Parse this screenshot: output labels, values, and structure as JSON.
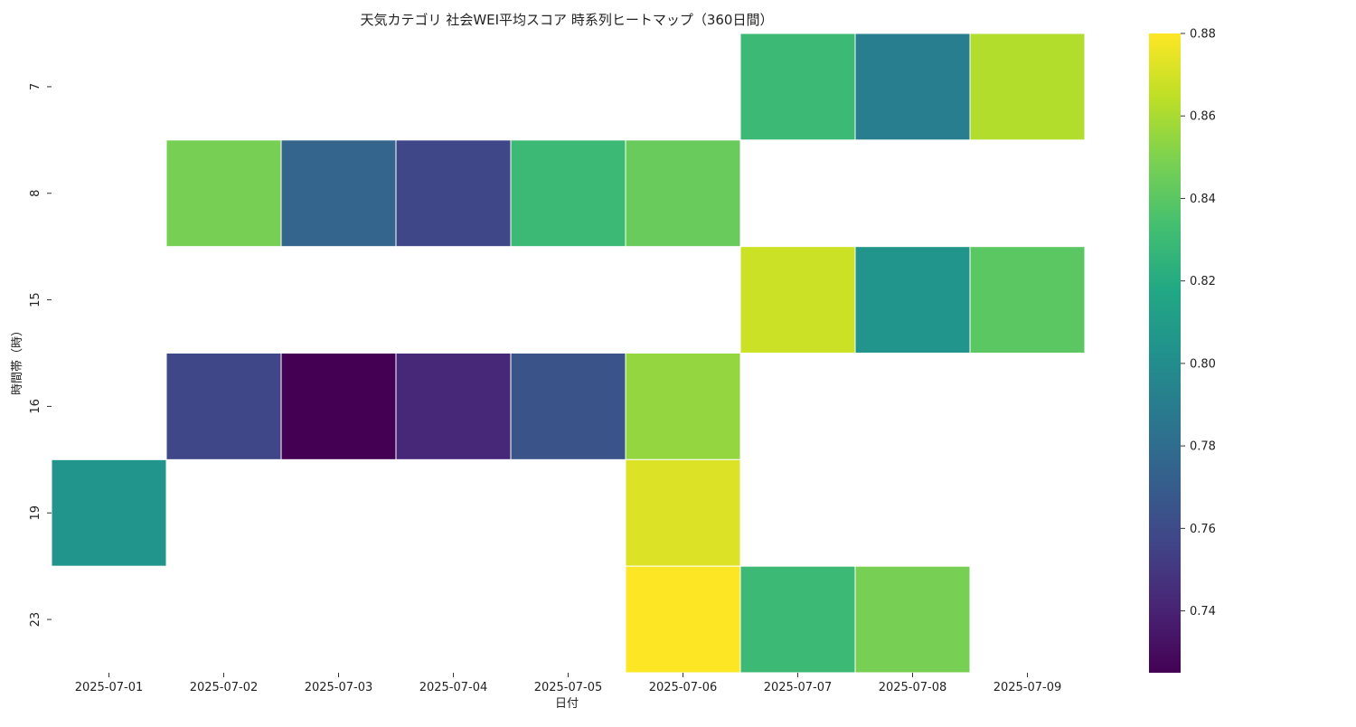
{
  "chart_data": {
    "type": "heatmap",
    "title": "天気カテゴリ 社会WEI平均スコア 時系列ヒートマップ（360日間）",
    "xlabel": "日付",
    "ylabel": "時間帯（時）",
    "x_categories": [
      "2025-07-01",
      "2025-07-02",
      "2025-07-03",
      "2025-07-04",
      "2025-07-05",
      "2025-07-06",
      "2025-07-07",
      "2025-07-08",
      "2025-07-09"
    ],
    "y_categories": [
      "7",
      "8",
      "15",
      "16",
      "19",
      "23"
    ],
    "values": [
      [
        null,
        null,
        null,
        null,
        null,
        null,
        0.83,
        0.79,
        0.862
      ],
      [
        null,
        0.848,
        0.775,
        0.758,
        0.83,
        0.844,
        null,
        null,
        null
      ],
      [
        null,
        null,
        null,
        null,
        null,
        null,
        0.868,
        0.805,
        0.84
      ],
      [
        null,
        0.758,
        0.725,
        0.742,
        0.765,
        0.855,
        null,
        null,
        null
      ],
      [
        0.805,
        null,
        null,
        null,
        null,
        0.872,
        null,
        null,
        null
      ],
      [
        null,
        null,
        null,
        null,
        null,
        0.88,
        0.83,
        0.848,
        null
      ]
    ],
    "colorbar": {
      "colormap": "viridis",
      "vmin": 0.725,
      "vmax": 0.88,
      "ticks": [
        0.74,
        0.76,
        0.78,
        0.8,
        0.82,
        0.84,
        0.86,
        0.88
      ],
      "tick_labels": [
        "0.74",
        "0.76",
        "0.78",
        "0.80",
        "0.82",
        "0.84",
        "0.86",
        "0.88"
      ]
    },
    "missing_cells": "blank (white)",
    "grid": false
  }
}
